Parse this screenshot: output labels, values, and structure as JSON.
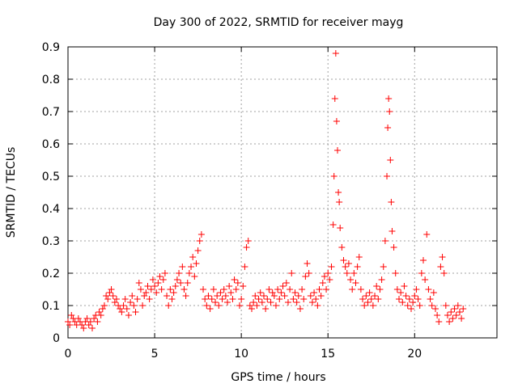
{
  "chart_data": {
    "type": "scatter",
    "title": "Day 300 of 2022, SRMTID for receiver mayg",
    "xlabel": "GPS time / hours",
    "ylabel": "SRMTID / TECUs",
    "xlim": [
      0,
      24.75
    ],
    "ylim": [
      0,
      0.9
    ],
    "grid": true,
    "x_ticks": [
      0,
      5,
      10,
      15,
      20
    ],
    "y_ticks": [
      0,
      0.1,
      0.2,
      0.3,
      0.4,
      0.5,
      0.6,
      0.7,
      0.8,
      0.9
    ],
    "x_tick_labels": [
      "0",
      "5",
      "10",
      "15",
      "20"
    ],
    "y_tick_labels": [
      "0",
      "0.1",
      "0.2",
      "0.3",
      "0.4",
      "0.5",
      "0.6",
      "0.7",
      "0.8",
      "0.9"
    ],
    "marker": "+",
    "series": [
      {
        "name": "SRMTID",
        "color": "#ff0000",
        "points": [
          [
            0.0,
            0.05
          ],
          [
            0.1,
            0.04
          ],
          [
            0.2,
            0.07
          ],
          [
            0.3,
            0.06
          ],
          [
            0.4,
            0.05
          ],
          [
            0.5,
            0.04
          ],
          [
            0.6,
            0.06
          ],
          [
            0.7,
            0.05
          ],
          [
            0.8,
            0.04
          ],
          [
            0.9,
            0.03
          ],
          [
            1.0,
            0.05
          ],
          [
            1.1,
            0.06
          ],
          [
            1.2,
            0.04
          ],
          [
            1.3,
            0.05
          ],
          [
            1.4,
            0.03
          ],
          [
            1.5,
            0.06
          ],
          [
            1.6,
            0.07
          ],
          [
            1.7,
            0.05
          ],
          [
            1.8,
            0.08
          ],
          [
            1.9,
            0.07
          ],
          [
            2.0,
            0.09
          ],
          [
            2.1,
            0.1
          ],
          [
            2.2,
            0.13
          ],
          [
            2.3,
            0.12
          ],
          [
            2.4,
            0.14
          ],
          [
            2.5,
            0.15
          ],
          [
            2.6,
            0.13
          ],
          [
            2.7,
            0.11
          ],
          [
            2.8,
            0.12
          ],
          [
            2.9,
            0.1
          ],
          [
            3.0,
            0.09
          ],
          [
            3.1,
            0.08
          ],
          [
            3.2,
            0.1
          ],
          [
            3.3,
            0.12
          ],
          [
            3.4,
            0.09
          ],
          [
            3.5,
            0.07
          ],
          [
            3.6,
            0.11
          ],
          [
            3.7,
            0.13
          ],
          [
            3.8,
            0.1
          ],
          [
            3.9,
            0.08
          ],
          [
            4.0,
            0.12
          ],
          [
            4.1,
            0.17
          ],
          [
            4.2,
            0.15
          ],
          [
            4.3,
            0.1
          ],
          [
            4.4,
            0.13
          ],
          [
            4.5,
            0.14
          ],
          [
            4.6,
            0.16
          ],
          [
            4.7,
            0.12
          ],
          [
            4.8,
            0.15
          ],
          [
            4.9,
            0.18
          ],
          [
            5.0,
            0.16
          ],
          [
            5.1,
            0.14
          ],
          [
            5.2,
            0.17
          ],
          [
            5.3,
            0.19
          ],
          [
            5.4,
            0.15
          ],
          [
            5.5,
            0.18
          ],
          [
            5.6,
            0.2
          ],
          [
            5.7,
            0.13
          ],
          [
            5.8,
            0.1
          ],
          [
            5.9,
            0.15
          ],
          [
            6.0,
            0.12
          ],
          [
            6.1,
            0.14
          ],
          [
            6.2,
            0.16
          ],
          [
            6.3,
            0.18
          ],
          [
            6.4,
            0.2
          ],
          [
            6.5,
            0.17
          ],
          [
            6.6,
            0.22
          ],
          [
            6.7,
            0.15
          ],
          [
            6.8,
            0.13
          ],
          [
            6.9,
            0.17
          ],
          [
            7.0,
            0.2
          ],
          [
            7.1,
            0.22
          ],
          [
            7.2,
            0.25
          ],
          [
            7.3,
            0.19
          ],
          [
            7.4,
            0.23
          ],
          [
            7.5,
            0.27
          ],
          [
            7.6,
            0.3
          ],
          [
            7.7,
            0.32
          ],
          [
            7.8,
            0.15
          ],
          [
            7.9,
            0.12
          ],
          [
            8.0,
            0.1
          ],
          [
            8.1,
            0.13
          ],
          [
            8.2,
            0.09
          ],
          [
            8.3,
            0.12
          ],
          [
            8.4,
            0.15
          ],
          [
            8.5,
            0.11
          ],
          [
            8.6,
            0.13
          ],
          [
            8.7,
            0.1
          ],
          [
            8.8,
            0.14
          ],
          [
            8.9,
            0.12
          ],
          [
            9.0,
            0.15
          ],
          [
            9.1,
            0.13
          ],
          [
            9.2,
            0.11
          ],
          [
            9.3,
            0.16
          ],
          [
            9.4,
            0.14
          ],
          [
            9.5,
            0.12
          ],
          [
            9.6,
            0.18
          ],
          [
            9.7,
            0.15
          ],
          [
            9.8,
            0.17
          ],
          [
            9.9,
            0.1
          ],
          [
            10.0,
            0.12
          ],
          [
            10.1,
            0.16
          ],
          [
            10.2,
            0.22
          ],
          [
            10.3,
            0.28
          ],
          [
            10.4,
            0.3
          ],
          [
            10.5,
            0.1
          ],
          [
            10.6,
            0.09
          ],
          [
            10.7,
            0.11
          ],
          [
            10.8,
            0.13
          ],
          [
            10.9,
            0.1
          ],
          [
            11.0,
            0.12
          ],
          [
            11.1,
            0.14
          ],
          [
            11.2,
            0.11
          ],
          [
            11.3,
            0.13
          ],
          [
            11.4,
            0.09
          ],
          [
            11.5,
            0.12
          ],
          [
            11.6,
            0.15
          ],
          [
            11.7,
            0.11
          ],
          [
            11.8,
            0.14
          ],
          [
            11.9,
            0.13
          ],
          [
            12.0,
            0.1
          ],
          [
            12.1,
            0.15
          ],
          [
            12.2,
            0.12
          ],
          [
            12.3,
            0.14
          ],
          [
            12.4,
            0.16
          ],
          [
            12.5,
            0.13
          ],
          [
            12.6,
            0.17
          ],
          [
            12.7,
            0.11
          ],
          [
            12.8,
            0.15
          ],
          [
            12.9,
            0.2
          ],
          [
            13.0,
            0.12
          ],
          [
            13.1,
            0.14
          ],
          [
            13.2,
            0.11
          ],
          [
            13.3,
            0.13
          ],
          [
            13.4,
            0.09
          ],
          [
            13.5,
            0.15
          ],
          [
            13.6,
            0.12
          ],
          [
            13.7,
            0.19
          ],
          [
            13.8,
            0.23
          ],
          [
            13.9,
            0.2
          ],
          [
            14.0,
            0.13
          ],
          [
            14.1,
            0.11
          ],
          [
            14.2,
            0.14
          ],
          [
            14.3,
            0.12
          ],
          [
            14.4,
            0.1
          ],
          [
            14.5,
            0.15
          ],
          [
            14.6,
            0.13
          ],
          [
            14.7,
            0.17
          ],
          [
            14.8,
            0.19
          ],
          [
            14.9,
            0.15
          ],
          [
            15.0,
            0.2
          ],
          [
            15.1,
            0.18
          ],
          [
            15.2,
            0.22
          ],
          [
            15.3,
            0.35
          ],
          [
            15.35,
            0.5
          ],
          [
            15.4,
            0.74
          ],
          [
            15.45,
            0.88
          ],
          [
            15.5,
            0.67
          ],
          [
            15.55,
            0.58
          ],
          [
            15.6,
            0.45
          ],
          [
            15.65,
            0.42
          ],
          [
            15.7,
            0.34
          ],
          [
            15.8,
            0.28
          ],
          [
            15.9,
            0.24
          ],
          [
            16.0,
            0.22
          ],
          [
            16.1,
            0.2
          ],
          [
            16.2,
            0.23
          ],
          [
            16.3,
            0.18
          ],
          [
            16.4,
            0.15
          ],
          [
            16.5,
            0.2
          ],
          [
            16.6,
            0.17
          ],
          [
            16.7,
            0.22
          ],
          [
            16.8,
            0.25
          ],
          [
            16.9,
            0.15
          ],
          [
            17.0,
            0.12
          ],
          [
            17.1,
            0.1
          ],
          [
            17.2,
            0.13
          ],
          [
            17.3,
            0.11
          ],
          [
            17.4,
            0.14
          ],
          [
            17.5,
            0.12
          ],
          [
            17.6,
            0.1
          ],
          [
            17.7,
            0.13
          ],
          [
            17.8,
            0.16
          ],
          [
            17.9,
            0.12
          ],
          [
            18.0,
            0.15
          ],
          [
            18.1,
            0.18
          ],
          [
            18.2,
            0.22
          ],
          [
            18.3,
            0.3
          ],
          [
            18.4,
            0.5
          ],
          [
            18.45,
            0.65
          ],
          [
            18.5,
            0.74
          ],
          [
            18.55,
            0.7
          ],
          [
            18.6,
            0.55
          ],
          [
            18.65,
            0.42
          ],
          [
            18.7,
            0.33
          ],
          [
            18.8,
            0.28
          ],
          [
            18.9,
            0.2
          ],
          [
            19.0,
            0.15
          ],
          [
            19.1,
            0.12
          ],
          [
            19.2,
            0.14
          ],
          [
            19.3,
            0.11
          ],
          [
            19.4,
            0.16
          ],
          [
            19.5,
            0.13
          ],
          [
            19.6,
            0.1
          ],
          [
            19.7,
            0.12
          ],
          [
            19.8,
            0.09
          ],
          [
            19.9,
            0.11
          ],
          [
            20.0,
            0.13
          ],
          [
            20.1,
            0.15
          ],
          [
            20.2,
            0.12
          ],
          [
            20.3,
            0.1
          ],
          [
            20.4,
            0.2
          ],
          [
            20.5,
            0.24
          ],
          [
            20.6,
            0.18
          ],
          [
            20.7,
            0.32
          ],
          [
            20.8,
            0.15
          ],
          [
            20.9,
            0.12
          ],
          [
            21.0,
            0.1
          ],
          [
            21.1,
            0.14
          ],
          [
            21.2,
            0.09
          ],
          [
            21.3,
            0.07
          ],
          [
            21.4,
            0.05
          ],
          [
            21.5,
            0.22
          ],
          [
            21.6,
            0.25
          ],
          [
            21.7,
            0.2
          ],
          [
            21.8,
            0.1
          ],
          [
            21.9,
            0.07
          ],
          [
            22.0,
            0.05
          ],
          [
            22.1,
            0.08
          ],
          [
            22.2,
            0.06
          ],
          [
            22.3,
            0.09
          ],
          [
            22.4,
            0.07
          ],
          [
            22.5,
            0.1
          ],
          [
            22.6,
            0.08
          ],
          [
            22.7,
            0.06
          ],
          [
            22.8,
            0.09
          ]
        ]
      }
    ]
  }
}
